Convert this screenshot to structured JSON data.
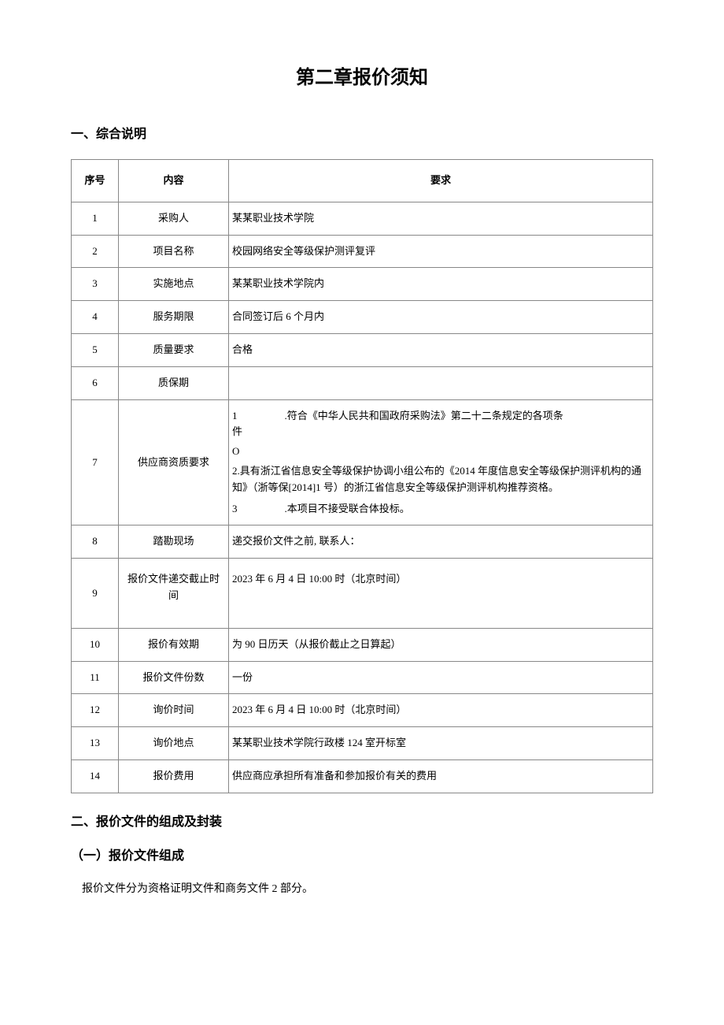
{
  "page_title": "第二章报价须知",
  "section1_heading": "一、综合说明",
  "table": {
    "headers": {
      "seq": "序号",
      "content": "内容",
      "req": "要求"
    },
    "rows": [
      {
        "seq": "1",
        "content": "采购人",
        "req": "某某职业技术学院"
      },
      {
        "seq": "2",
        "content": "项目名称",
        "req": "校园网络安全等级保护测评复评"
      },
      {
        "seq": "3",
        "content": "实施地点",
        "req": "某某职业技术学院内"
      },
      {
        "seq": "4",
        "content": "服务期限",
        "req": "合同签订后 6 个月内"
      },
      {
        "seq": "5",
        "content": "质量要求",
        "req": "合格"
      },
      {
        "seq": "6",
        "content": "质保期",
        "req": ""
      },
      {
        "seq": "7",
        "content": "供应商资质要求",
        "req_item1_num": "1",
        "req_item1_text": ".符合《中华人民共和国政府采购法》第二十二条规定的各项条",
        "req_item1_line2": "件",
        "req_item1_circle": "O",
        "req_item2": "2.具有浙江省信息安全等级保护协调小组公布的《2014 年度信息安全等级保护测评机构的通知》（浙等保[2014]1 号）的浙江省信息安全等级保护测评机构推荐资格。",
        "req_item3_num": "3",
        "req_item3_text": ".本项目不接受联合体投标。"
      },
      {
        "seq": "8",
        "content": "踏勘现场",
        "req": "递交报价文件之前, 联系人："
      },
      {
        "seq": "9",
        "content": "报价文件递交截止时间",
        "req": "2023 年 6 月 4 日 10:00 时（北京时间）"
      },
      {
        "seq": "10",
        "content": "报价有效期",
        "req": "为 90 日历天（从报价截止之日算起）"
      },
      {
        "seq": "11",
        "content": "报价文件份数",
        "req": "一份"
      },
      {
        "seq": "12",
        "content": "询价时间",
        "req": "2023 年 6 月 4 日 10:00 时（北京时间）"
      },
      {
        "seq": "13",
        "content": "询价地点",
        "req": "某某职业技术学院行政楼 124 室开标室"
      },
      {
        "seq": "14",
        "content": "报价费用",
        "req": "供应商应承担所有准备和参加报价有关的费用"
      }
    ]
  },
  "section2_heading": "二、报价文件的组成及封装",
  "section2_sub1": "（一）报价文件组成",
  "section2_text1": "报价文件分为资格证明文件和商务文件 2 部分。",
  "colors": {
    "text": "#000000",
    "background": "#ffffff",
    "border": "#888888"
  }
}
